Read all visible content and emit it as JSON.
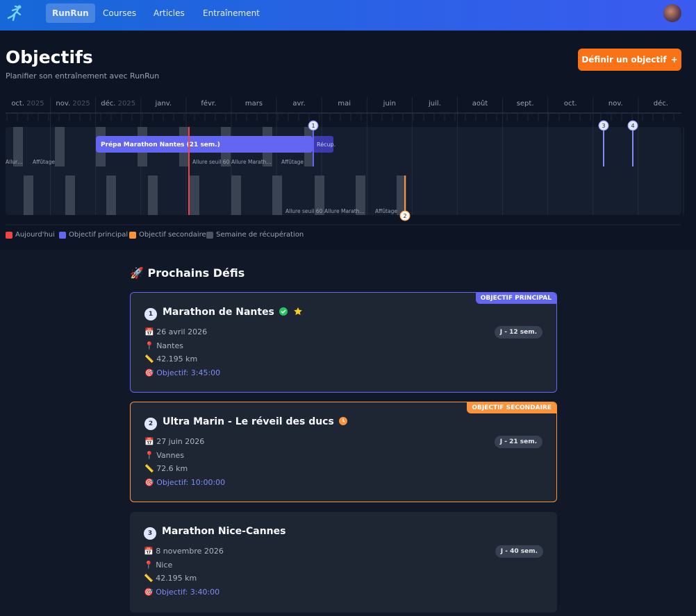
{
  "nav": {
    "brand": "RunRun",
    "links": [
      "Courses",
      "Articles",
      "Entraînement"
    ]
  },
  "header": {
    "title": "Objectifs",
    "subtitle": "Planifier son entraînement avec RunRun",
    "button": "Définir un objectif",
    "button_icon": "+"
  },
  "timeline": {
    "months": [
      {
        "name": "oct.",
        "year": "2025"
      },
      {
        "name": "nov.",
        "year": "2025"
      },
      {
        "name": "déc.",
        "year": "2025"
      },
      {
        "name": "janv."
      },
      {
        "name": "févr."
      },
      {
        "name": "mars"
      },
      {
        "name": "avr."
      },
      {
        "name": "mai"
      },
      {
        "name": "juin"
      },
      {
        "name": "juil."
      },
      {
        "name": "août"
      },
      {
        "name": "sept."
      },
      {
        "name": "oct."
      },
      {
        "name": "nov."
      },
      {
        "name": "déc."
      }
    ],
    "blocks": [
      "Prépa Marathon Nantes (21 sem.)",
      "Récup."
    ],
    "week_labels": [
      "Allur…",
      "Affûtage",
      "Allure seuil 60",
      "Allure Marath…",
      "Affûtage",
      "Allure seuil 60",
      "Allure Marath…",
      "Affûtage"
    ],
    "markers": [
      "1",
      "2",
      "3",
      "4"
    ]
  },
  "legend": [
    "Aujourd'hui",
    "Objectif principal",
    "Objectif secondaire",
    "Semaine de récupération"
  ],
  "section_title": "🚀 Prochains Défis",
  "cards": [
    {
      "number": "1",
      "name": "Marathon de Nantes",
      "badge": "OBJECTIF PRINCIPAL",
      "countdown": "J - 12 sem.",
      "date": "📅 26 avril 2026",
      "location": "📍 Nantes",
      "distance": "📏 42.195 km",
      "goal": "🎯 Objectif: 3:45:00"
    },
    {
      "number": "2",
      "name": "Ultra Marin - Le réveil des ducs",
      "badge": "OBJECTIF SECONDAIRE",
      "countdown": "J - 21 sem.",
      "date": "📅 27 juin 2026",
      "location": "📍 Vannes",
      "distance": "📏 72.6 km",
      "goal": "🎯 Objectif: 10:00:00"
    },
    {
      "number": "3",
      "name": "Marathon Nice-Cannes",
      "countdown": "J - 40 sem.",
      "date": "📅 8 novembre 2026",
      "location": "📍 Nice",
      "distance": "📏 42.195 km",
      "goal": "🎯 Objectif: 3:40:00"
    }
  ]
}
